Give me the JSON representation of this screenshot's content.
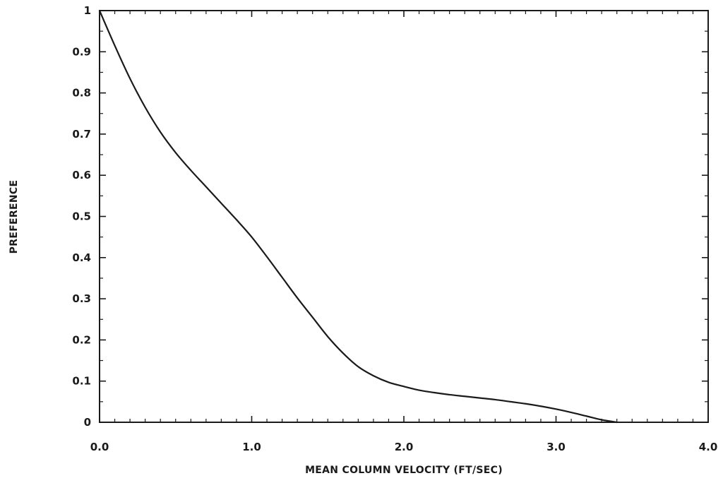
{
  "chart_data": {
    "type": "line",
    "title": "",
    "xlabel": "MEAN COLUMN VELOCITY (FT/SEC)",
    "ylabel": "PREFERENCE",
    "xlim": [
      0,
      4.0
    ],
    "ylim": [
      0,
      1
    ],
    "x_tick_labels": [
      "0.0",
      "1.0",
      "2.0",
      "3.0",
      "4.0"
    ],
    "y_tick_labels": [
      "0",
      "0.1",
      "0.2",
      "0.3",
      "0.4",
      "0.5",
      "0.6",
      "0.7",
      "0.8",
      "0.9",
      "1"
    ],
    "grid": false,
    "series": [
      {
        "x": [
          0.0,
          0.1,
          0.2,
          0.3,
          0.4,
          0.5,
          0.6,
          0.7,
          0.8,
          0.9,
          1.0,
          1.1,
          1.2,
          1.3,
          1.4,
          1.5,
          1.6,
          1.7,
          1.8,
          1.9,
          2.0,
          2.1,
          2.2,
          2.3,
          2.4,
          2.5,
          2.6,
          2.7,
          2.8,
          2.9,
          3.0,
          3.1,
          3.2,
          3.3,
          3.4
        ],
        "y": [
          1.0,
          0.915,
          0.835,
          0.765,
          0.705,
          0.655,
          0.612,
          0.572,
          0.532,
          0.492,
          0.45,
          0.402,
          0.352,
          0.302,
          0.255,
          0.208,
          0.168,
          0.135,
          0.113,
          0.097,
          0.087,
          0.078,
          0.072,
          0.067,
          0.063,
          0.059,
          0.055,
          0.05,
          0.045,
          0.039,
          0.032,
          0.024,
          0.015,
          0.006,
          0.0
        ]
      }
    ]
  }
}
